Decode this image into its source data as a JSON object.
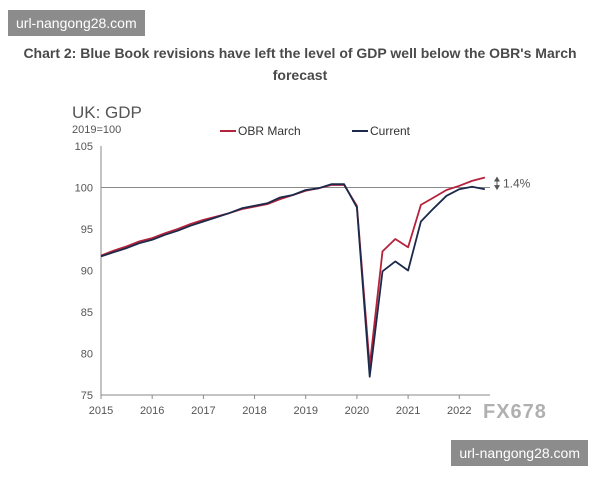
{
  "watermark_top": "url-nangong28.com",
  "watermark_bottom": "url-nangong28.com",
  "brand_mark": "FX678",
  "caption": "Chart 2: Blue Book revisions have left the level of GDP well below the OBR's March forecast",
  "colors": {
    "obr": "#b5223b",
    "current": "#1b2a4a",
    "axis": "#8a8a8a",
    "refline": "#8a8a8a"
  },
  "chart_data": {
    "type": "line",
    "title": "UK: GDP",
    "subtitle": "2019=100",
    "xlim": [
      2015,
      2022.6
    ],
    "ylim": [
      75,
      105
    ],
    "yticks": [
      75,
      80,
      85,
      90,
      95,
      100,
      105
    ],
    "xticks": [
      "2015",
      "2016",
      "2017",
      "2018",
      "2019",
      "2020",
      "2021",
      "2022"
    ],
    "reference_line": 100,
    "annotation": "1.4%",
    "legend": "top",
    "series": [
      {
        "name": "OBR March",
        "x": [
          2015.0,
          2015.25,
          2015.5,
          2015.75,
          2016.0,
          2016.25,
          2016.5,
          2016.75,
          2017.0,
          2017.25,
          2017.5,
          2017.75,
          2018.0,
          2018.25,
          2018.5,
          2018.75,
          2019.0,
          2019.25,
          2019.5,
          2019.75,
          2020.0,
          2020.25,
          2020.5,
          2020.75,
          2021.0,
          2021.25,
          2021.5,
          2021.75,
          2022.0,
          2022.25,
          2022.5
        ],
        "values": [
          91.8,
          92.4,
          92.9,
          93.5,
          93.9,
          94.5,
          95.0,
          95.6,
          96.1,
          96.5,
          96.9,
          97.4,
          97.7,
          98.0,
          98.6,
          99.1,
          99.6,
          99.9,
          100.3,
          100.3,
          97.8,
          78.5,
          92.3,
          93.8,
          92.8,
          97.9,
          98.8,
          99.7,
          100.2,
          100.8,
          101.2
        ]
      },
      {
        "name": "Current",
        "x": [
          2015.0,
          2015.25,
          2015.5,
          2015.75,
          2016.0,
          2016.25,
          2016.5,
          2016.75,
          2017.0,
          2017.25,
          2017.5,
          2017.75,
          2018.0,
          2018.25,
          2018.5,
          2018.75,
          2019.0,
          2019.25,
          2019.5,
          2019.75,
          2020.0,
          2020.25,
          2020.5,
          2020.75,
          2021.0,
          2021.25,
          2021.5,
          2021.75,
          2022.0,
          2022.25,
          2022.5
        ],
        "values": [
          91.7,
          92.2,
          92.7,
          93.3,
          93.7,
          94.3,
          94.8,
          95.4,
          95.9,
          96.4,
          96.9,
          97.5,
          97.8,
          98.1,
          98.8,
          99.1,
          99.7,
          99.9,
          100.4,
          100.4,
          97.6,
          77.2,
          89.9,
          91.1,
          90.0,
          95.9,
          97.5,
          99.0,
          99.8,
          100.1,
          99.8
        ]
      }
    ]
  }
}
